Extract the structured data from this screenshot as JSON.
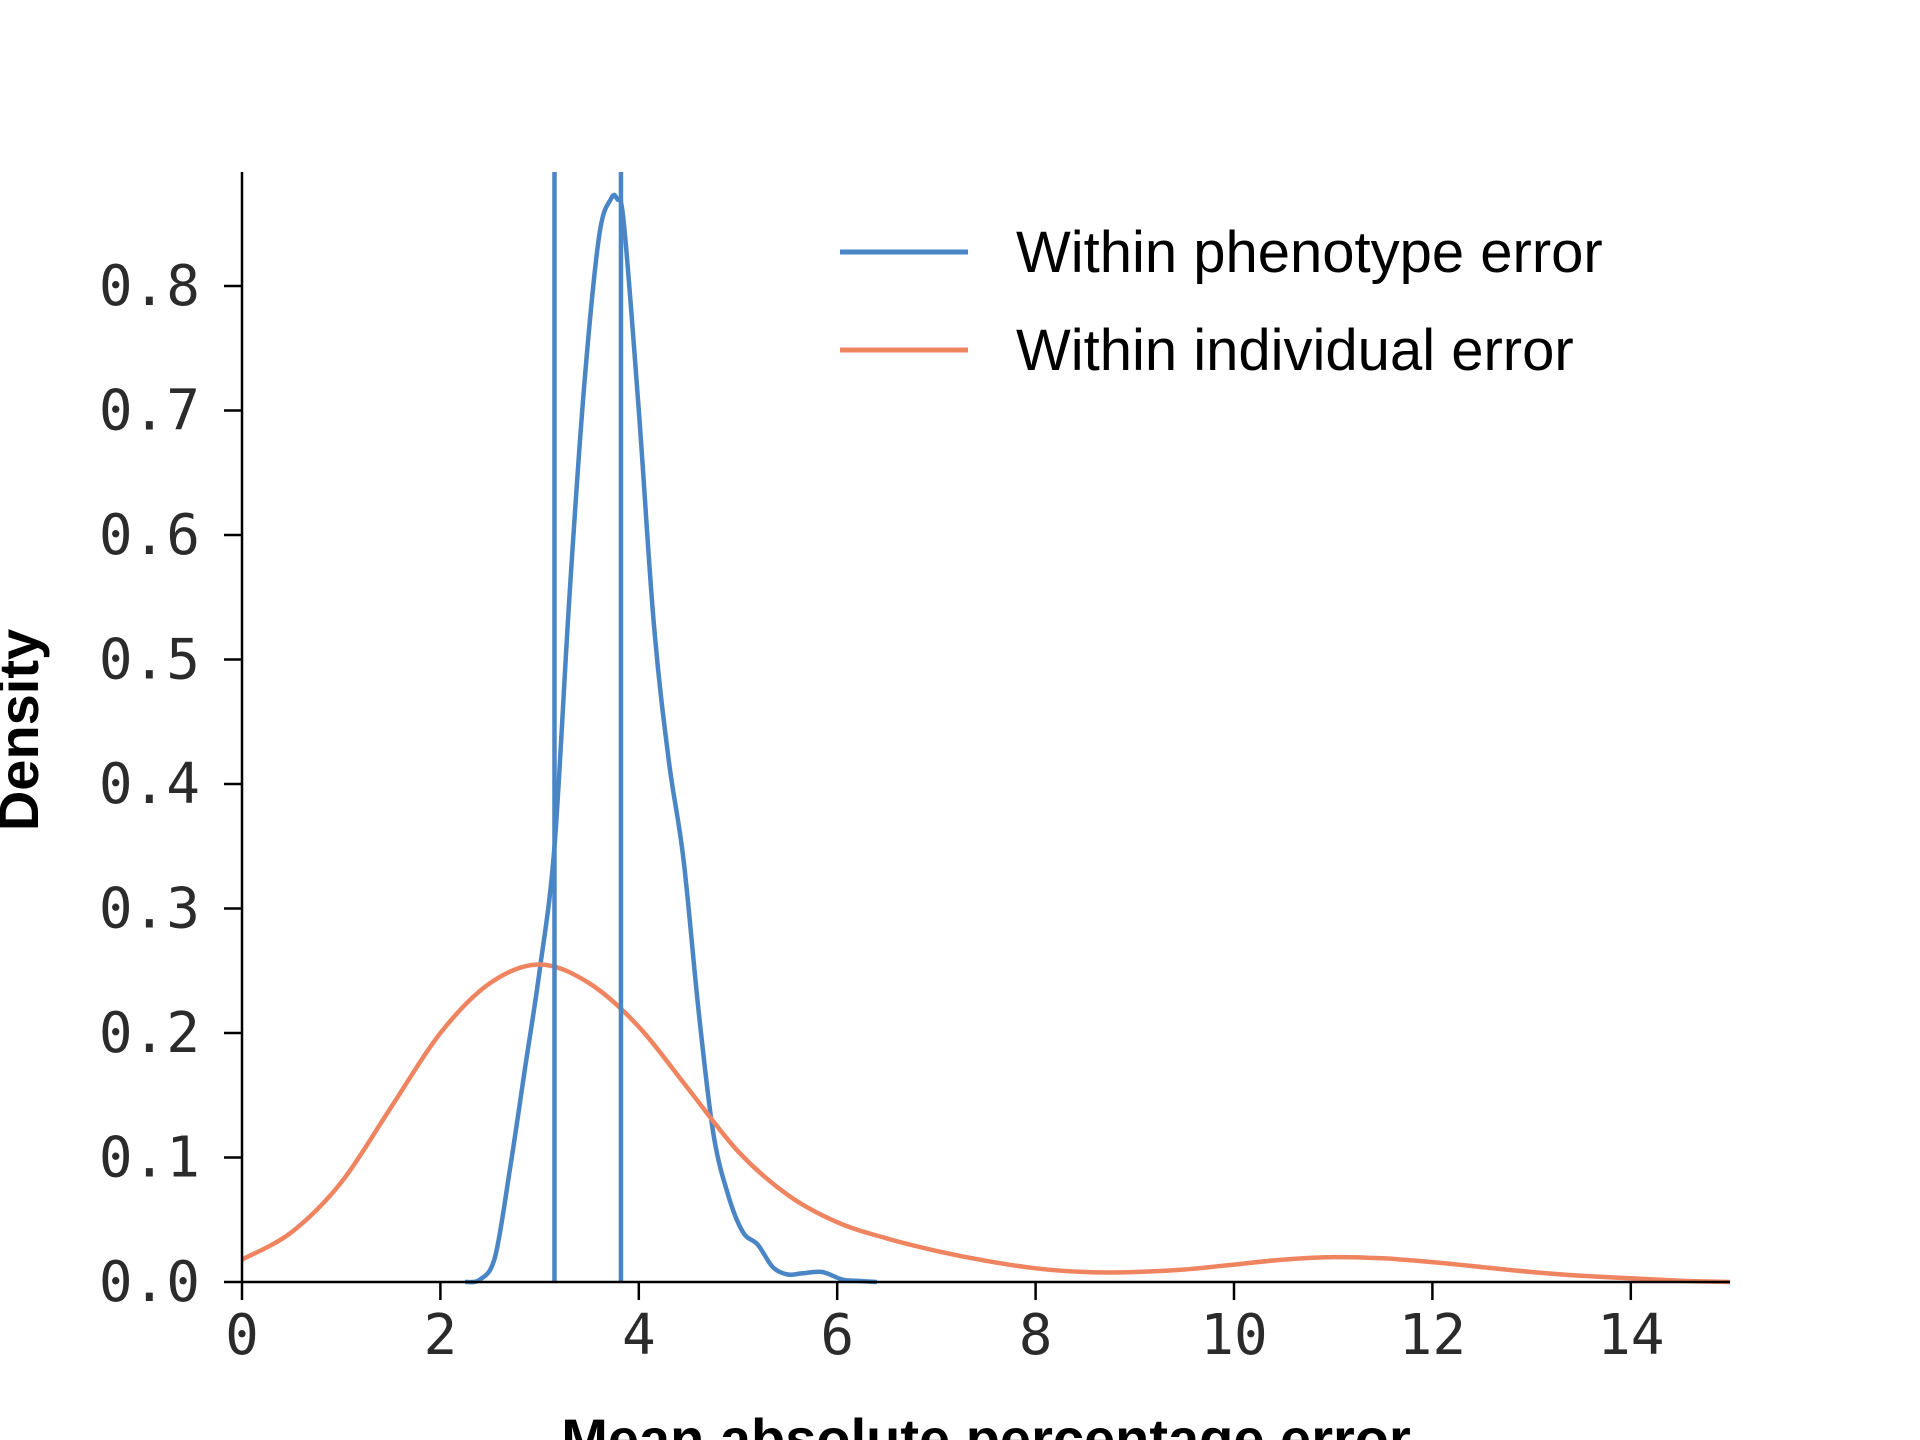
{
  "chart_data": {
    "type": "line",
    "xlabel": "Mean absolute percentage error",
    "ylabel": "Density",
    "xlim": [
      0,
      15
    ],
    "ylim": [
      0,
      0.89
    ],
    "xticks": [
      0,
      2,
      4,
      6,
      8,
      10,
      12,
      14
    ],
    "yticks": [
      0.0,
      0.1,
      0.2,
      0.3,
      0.4,
      0.5,
      0.6,
      0.7,
      0.8
    ],
    "xtick_labels": [
      "0",
      "2",
      "4",
      "6",
      "8",
      "10",
      "12",
      "14"
    ],
    "ytick_labels": [
      "0.0",
      "0.1",
      "0.2",
      "0.3",
      "0.4",
      "0.5",
      "0.6",
      "0.7",
      "0.8"
    ],
    "grid": false,
    "legend_position": "top-right",
    "series": [
      {
        "name": "Within phenotype error",
        "color": "#4a86c5",
        "x": [
          2.25,
          2.4,
          2.55,
          2.7,
          2.85,
          3.0,
          3.15,
          3.3,
          3.45,
          3.6,
          3.72,
          3.78,
          3.85,
          4.0,
          4.15,
          4.3,
          4.45,
          4.6,
          4.75,
          4.9,
          5.05,
          5.2,
          5.35,
          5.5,
          5.65,
          5.85,
          6.05,
          6.2,
          6.4
        ],
        "y": [
          0.0,
          0.002,
          0.02,
          0.09,
          0.17,
          0.25,
          0.35,
          0.55,
          0.72,
          0.84,
          0.87,
          0.87,
          0.85,
          0.7,
          0.53,
          0.42,
          0.34,
          0.22,
          0.12,
          0.07,
          0.04,
          0.03,
          0.012,
          0.006,
          0.007,
          0.008,
          0.002,
          0.001,
          0.0
        ]
      },
      {
        "name": "Within individual error",
        "color": "#ef8461",
        "x": [
          0,
          0.5,
          1.0,
          1.5,
          2.0,
          2.5,
          3.0,
          3.5,
          4.0,
          4.5,
          5.0,
          5.5,
          6.0,
          6.5,
          7.0,
          7.5,
          8.0,
          8.5,
          9.0,
          9.5,
          10.0,
          10.5,
          11.0,
          11.5,
          12.0,
          12.5,
          13.0,
          13.5,
          14.0,
          14.5,
          15.0
        ],
        "y": [
          0.018,
          0.04,
          0.08,
          0.14,
          0.2,
          0.24,
          0.255,
          0.24,
          0.205,
          0.155,
          0.105,
          0.07,
          0.048,
          0.035,
          0.025,
          0.017,
          0.011,
          0.008,
          0.008,
          0.01,
          0.014,
          0.018,
          0.02,
          0.019,
          0.016,
          0.012,
          0.008,
          0.005,
          0.003,
          0.001,
          0.0
        ]
      }
    ],
    "vlines": [
      {
        "x": 3.15,
        "color": "#4a86c5"
      },
      {
        "x": 3.82,
        "color": "#4a86c5"
      }
    ]
  }
}
